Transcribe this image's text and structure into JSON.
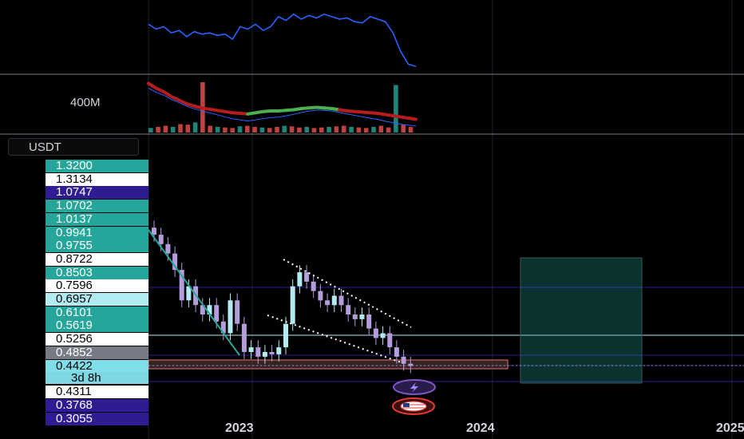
{
  "header": {
    "currency_button": "USDT",
    "volume_scale_label": "400M",
    "countdown": "3d 8h"
  },
  "colors": {
    "background": "#000000",
    "teal": "#26a69a",
    "indigo": "#311b92",
    "white_label": "#ffffff",
    "cyan_label": "#80deea",
    "grey_label": "#787b86",
    "light_teal": "#b2ebf2",
    "candle_up": "#b2ebf2",
    "candle_down": "#b39ddb",
    "rsi_line": "#2962ff",
    "ma_red": "#b71c1c",
    "ma_green": "#4caf50"
  },
  "price_labels": [
    {
      "value": "1.3200",
      "style": "teal"
    },
    {
      "value": "1.3134",
      "style": "white"
    },
    {
      "value": "1.0747",
      "style": "indigo"
    },
    {
      "value": "1.0702",
      "style": "teal"
    },
    {
      "value": "1.0137",
      "style": "teal"
    },
    {
      "value": "0.9941",
      "style": "teal"
    },
    {
      "value": "0.9755",
      "style": "teal"
    },
    {
      "value": "0.8722",
      "style": "white"
    },
    {
      "value": "0.8503",
      "style": "teal"
    },
    {
      "value": "0.7596",
      "style": "white"
    },
    {
      "value": "0.6957",
      "style": "lightteal"
    },
    {
      "value": "0.6101",
      "style": "teal"
    },
    {
      "value": "0.5619",
      "style": "teal"
    },
    {
      "value": "0.5256",
      "style": "white"
    },
    {
      "value": "0.4852",
      "style": "grey"
    },
    {
      "value": "0.4422",
      "style": "cyan"
    },
    {
      "value": "0.4311",
      "style": "white"
    },
    {
      "value": "0.3768",
      "style": "indigo"
    },
    {
      "value": "0.3055",
      "style": "indigo"
    }
  ],
  "chart_data": {
    "type": "line",
    "x_axis_labels": [
      "2023",
      "2024",
      "2025"
    ],
    "price_axis": {
      "min": 0.3055,
      "max": 1.32
    },
    "panes": {
      "oscillator": {
        "series": [
          {
            "values": [
              62,
              58,
              60,
              55,
              57,
              52,
              56,
              54,
              55,
              53,
              54,
              50,
              60,
              58,
              62,
              57,
              60,
              68,
              65,
              70,
              66,
              69,
              67,
              70,
              68,
              66,
              67,
              64,
              63,
              68,
              66,
              64,
              55,
              40,
              30,
              28
            ]
          }
        ]
      },
      "volume": {
        "scale_label": "400M",
        "values": [
          8,
          10,
          12,
          10,
          15,
          14,
          18,
          90,
          12,
          10,
          9,
          8,
          11,
          12,
          10,
          9,
          8,
          10,
          12,
          11,
          9,
          10,
          8,
          9,
          10,
          11,
          12,
          10,
          9,
          8,
          10,
          12,
          9,
          85,
          14,
          10
        ],
        "moving_average": [
          82,
          74,
          68,
          60,
          54,
          48,
          44,
          41,
          39,
          37,
          35,
          33,
          32,
          31,
          33,
          35,
          36,
          36,
          37,
          38,
          40,
          41,
          42,
          41,
          40,
          38,
          36,
          35,
          34,
          33,
          32,
          30,
          28,
          26,
          24,
          22
        ]
      }
    },
    "main_price_series": {
      "close": [
        1.0,
        0.96,
        0.92,
        0.85,
        0.72,
        0.78,
        0.7,
        0.66,
        0.7,
        0.63,
        0.58,
        0.72,
        0.62,
        0.5,
        0.52,
        0.48,
        0.5,
        0.49,
        0.52,
        0.62,
        0.78,
        0.84,
        0.8,
        0.76,
        0.72,
        0.7,
        0.74,
        0.7,
        0.66,
        0.64,
        0.66,
        0.6,
        0.56,
        0.58,
        0.52,
        0.48,
        0.45,
        0.44
      ]
    },
    "horizontal_levels": [
      0.7596,
      0.5256,
      0.4852,
      0.4422,
      0.4311
    ],
    "marked_price": 0.4422
  }
}
